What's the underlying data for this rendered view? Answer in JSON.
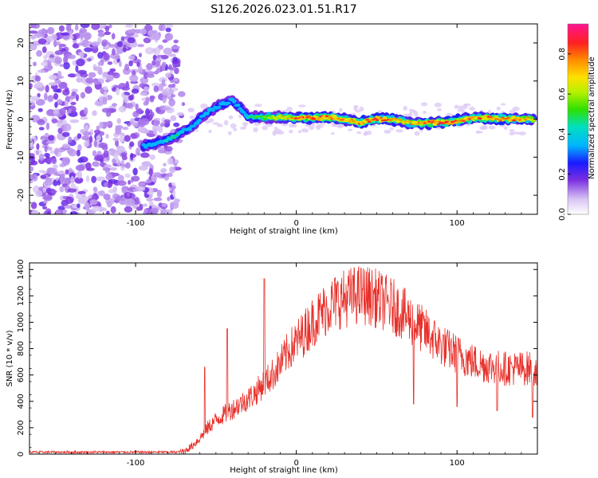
{
  "title": "S126.2026.023.01.51.R17",
  "chart_data": [
    {
      "type": "heatmap",
      "xlabel": "Height of straight line (km)",
      "ylabel": "Frequency (Hz)",
      "xlim": [
        -166,
        150
      ],
      "ylim": [
        -25,
        25
      ],
      "x_ticks": [
        -100,
        0,
        100
      ],
      "x_tick_labels": [
        "-100",
        "0",
        "100"
      ],
      "y_ticks": [
        -20,
        -10,
        0,
        10,
        20
      ],
      "y_tick_labels": [
        "-20",
        "-10",
        "0",
        "10",
        "20"
      ],
      "colorbar": {
        "label": "Normalized spectral amplitude",
        "range": [
          0.0,
          0.95
        ],
        "ticks": [
          0.0,
          0.2,
          0.4,
          0.6,
          0.8
        ],
        "tick_labels": [
          "0.0",
          "0.2",
          "0.4",
          "0.6",
          "0.8"
        ]
      },
      "signal_track": {
        "x": [
          -95,
          -90,
          -85,
          -80,
          -75,
          -70,
          -65,
          -60,
          -55,
          -50,
          -45,
          -40,
          -35,
          -30,
          -20,
          -10,
          0,
          10,
          20,
          30,
          40,
          50,
          60,
          70,
          80,
          90,
          100,
          110,
          120,
          130,
          140,
          148
        ],
        "frequency": [
          -7,
          -6.5,
          -6,
          -5.5,
          -4.5,
          -3,
          -2,
          0,
          2,
          3,
          4,
          5,
          3,
          0.5,
          0.5,
          0.5,
          0.3,
          0.3,
          0.5,
          0,
          -1,
          0,
          0,
          -1,
          -1,
          -1,
          -0.5,
          0.3,
          0.3,
          0,
          0,
          0
        ],
        "amplitude": [
          0.25,
          0.3,
          0.3,
          0.45,
          0.5,
          0.4,
          0.3,
          0.3,
          0.4,
          0.3,
          0.3,
          0.25,
          0.2,
          0.45,
          0.6,
          0.7,
          0.85,
          0.9,
          0.85,
          0.8,
          0.85,
          0.85,
          0.8,
          0.75,
          0.85,
          0.9,
          0.85,
          0.8,
          0.85,
          0.85,
          0.8,
          0.7
        ]
      },
      "noise_region_x": [
        -166,
        -74
      ]
    },
    {
      "type": "line",
      "xlabel": "Height of straight line (km)",
      "ylabel": "SNR (10 * v/v)",
      "xlim": [
        -166,
        150
      ],
      "ylim": [
        0,
        1450
      ],
      "x_ticks": [
        -100,
        0,
        100
      ],
      "x_tick_labels": [
        "-100",
        "0",
        "100"
      ],
      "y_ticks": [
        0,
        200,
        400,
        600,
        800,
        1000,
        1200,
        1400
      ],
      "y_tick_labels": [
        "0",
        "200",
        "400",
        "600",
        "800",
        "1000",
        "1200",
        "1400"
      ],
      "color": "#e8302a",
      "series": [
        {
          "name": "SNR",
          "x": [
            -166,
            -150,
            -130,
            -110,
            -90,
            -75,
            -70,
            -65,
            -60,
            -55,
            -50,
            -45,
            -40,
            -35,
            -30,
            -25,
            -20,
            -15,
            -10,
            -5,
            0,
            5,
            10,
            15,
            20,
            25,
            30,
            35,
            40,
            45,
            50,
            55,
            60,
            65,
            70,
            75,
            80,
            85,
            90,
            95,
            100,
            105,
            110,
            115,
            120,
            125,
            130,
            135,
            140,
            145,
            150
          ],
          "values": [
            15,
            15,
            15,
            15,
            15,
            15,
            20,
            60,
            120,
            200,
            260,
            300,
            340,
            380,
            420,
            470,
            540,
            600,
            680,
            780,
            850,
            920,
            1000,
            1060,
            1120,
            1160,
            1180,
            1200,
            1210,
            1200,
            1180,
            1150,
            1120,
            1080,
            1030,
            980,
            930,
            880,
            830,
            790,
            760,
            730,
            700,
            680,
            670,
            660,
            650,
            650,
            650,
            650,
            650
          ]
        }
      ],
      "spikes": [
        {
          "x": -57,
          "value": 660
        },
        {
          "x": -43,
          "value": 950
        },
        {
          "x": -20,
          "value": 1330
        },
        {
          "x": 73,
          "value": 380
        },
        {
          "x": 100,
          "value": 360
        },
        {
          "x": 125,
          "value": 330
        },
        {
          "x": 147,
          "value": 280
        }
      ]
    }
  ]
}
